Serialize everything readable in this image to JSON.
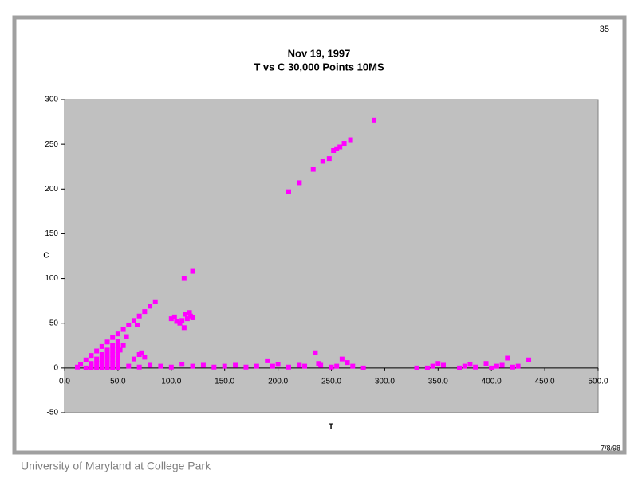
{
  "slide_number": "35",
  "date": "7/8/98",
  "footer": "University of Maryland at College Park",
  "chart_data": {
    "type": "scatter",
    "title": "Nov 19, 1997",
    "subtitle": "T vs C 30,000 Points 10MS",
    "x_label": "T",
    "y_label": "C",
    "color": "#ff00ff",
    "xlim": [
      0,
      500
    ],
    "ylim": [
      -50,
      300
    ],
    "xticks": [
      {
        "value": 0,
        "label": "0.0"
      },
      {
        "value": 50,
        "label": "50.0"
      },
      {
        "value": 100,
        "label": "100.0"
      },
      {
        "value": 150,
        "label": "150.0"
      },
      {
        "value": 200,
        "label": "200.0"
      },
      {
        "value": 250,
        "label": "250.0"
      },
      {
        "value": 300,
        "label": "300.0"
      },
      {
        "value": 350,
        "label": "350.0"
      },
      {
        "value": 400,
        "label": "400.0"
      },
      {
        "value": 450,
        "label": "450.0"
      },
      {
        "value": 500,
        "label": "500.0"
      }
    ],
    "yticks": [
      -50,
      0,
      50,
      100,
      150,
      200,
      250,
      300
    ],
    "x": [
      12,
      15,
      20,
      20,
      25,
      25,
      25,
      30,
      30,
      30,
      30,
      35,
      35,
      35,
      35,
      35,
      40,
      40,
      40,
      40,
      40,
      40,
      45,
      45,
      45,
      45,
      45,
      45,
      45,
      50,
      50,
      50,
      50,
      50,
      50,
      50,
      50,
      55,
      60,
      65,
      70,
      75,
      80,
      85,
      55,
      58,
      52,
      70,
      72,
      75,
      65,
      68,
      100,
      103,
      105,
      108,
      110,
      112,
      113,
      115,
      117,
      118,
      120,
      112,
      120,
      210,
      220,
      233,
      242,
      248,
      252,
      255,
      258,
      262,
      268,
      290,
      60,
      70,
      80,
      90,
      100,
      110,
      120,
      130,
      140,
      150,
      160,
      170,
      180,
      190,
      195,
      200,
      210,
      220,
      225,
      235,
      238,
      240,
      250,
      255,
      260,
      265,
      270,
      280,
      330,
      340,
      345,
      350,
      355,
      370,
      375,
      380,
      385,
      395,
      400,
      405,
      410,
      415,
      420,
      425,
      435
    ],
    "values": [
      1,
      4,
      0,
      9,
      0,
      5,
      14,
      0,
      5,
      10,
      19,
      0,
      5,
      10,
      15,
      24,
      0,
      5,
      10,
      15,
      20,
      29,
      0,
      5,
      10,
      15,
      20,
      25,
      34,
      0,
      5,
      10,
      15,
      20,
      25,
      30,
      38,
      43,
      48,
      53,
      58,
      63,
      69,
      74,
      25,
      35,
      20,
      15,
      17,
      12,
      10,
      48,
      55,
      57,
      52,
      50,
      53,
      45,
      60,
      55,
      62,
      58,
      56,
      100,
      108,
      197,
      207,
      222,
      231,
      234,
      243,
      245,
      247,
      251,
      255,
      277,
      2,
      1,
      3,
      2,
      1,
      4,
      2,
      3,
      1,
      2,
      3,
      1,
      2,
      8,
      2,
      4,
      1,
      3,
      2,
      17,
      5,
      3,
      1,
      2,
      10,
      6,
      2,
      0,
      0,
      0,
      2,
      5,
      3,
      0,
      2,
      4,
      1,
      5,
      0,
      2,
      3,
      11,
      1,
      2,
      9
    ]
  }
}
